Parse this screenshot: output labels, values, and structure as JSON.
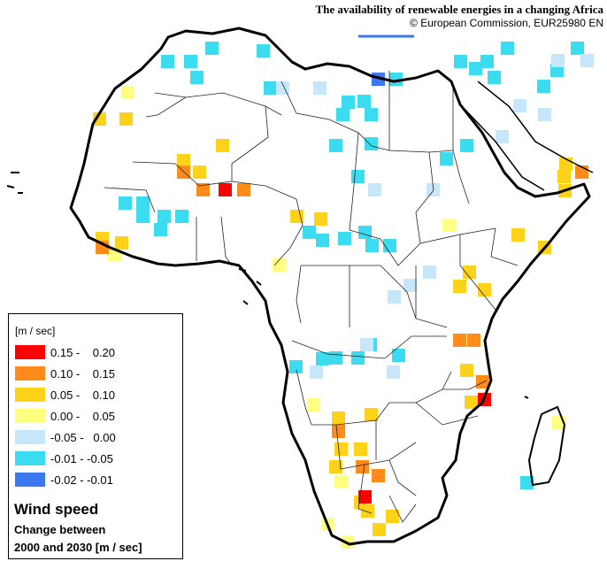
{
  "header": {
    "title": "The availability of renewable energies in a changing Africa",
    "credit": "© European Commission, EUR25980 EN"
  },
  "legend": {
    "unit": "[m / sec]",
    "classes": [
      {
        "label": "0.15 -    0.20",
        "color": "#ff0000"
      },
      {
        "label": "0.10 -    0.15",
        "color": "#ff8c1a"
      },
      {
        "label": "0.05 -    0.10",
        "color": "#ffd21a"
      },
      {
        "label": "0.00 -    0.05",
        "color": "#ffff80"
      },
      {
        "label": "-0.05 -   0.00",
        "color": "#c8e6fa"
      },
      {
        "label": "-0.01 - -0.05",
        "color": "#3cdcf0"
      },
      {
        "label": "-0.02 - -0.01",
        "color": "#3c78f0"
      }
    ],
    "title": "Wind speed",
    "subtitle1": "Change between",
    "subtitle2": "2000 and 2030  [m / sec]"
  },
  "cells": {
    "c0": [
      [
        182,
        62
      ],
      [
        208,
        62
      ],
      [
        232,
        47
      ],
      [
        215,
        80
      ],
      [
        290,
        50
      ],
      [
        298,
        92
      ],
      [
        513,
        62
      ],
      [
        530,
        70
      ],
      [
        543,
        62
      ],
      [
        551,
        80
      ],
      [
        566,
        47
      ],
      [
        622,
        72
      ],
      [
        607,
        90
      ],
      [
        645,
        47
      ],
      [
        440,
        82
      ],
      [
        386,
        108
      ],
      [
        380,
        122
      ],
      [
        404,
        107
      ],
      [
        412,
        122
      ],
      [
        372,
        157
      ],
      [
        397,
        192
      ],
      [
        412,
        155
      ],
      [
        497,
        172
      ],
      [
        520,
        157
      ],
      [
        134,
        222
      ],
      [
        154,
        222
      ],
      [
        154,
        237
      ],
      [
        178,
        237
      ],
      [
        198,
        237
      ],
      [
        174,
        252
      ],
      [
        342,
        255
      ],
      [
        357,
        264
      ],
      [
        382,
        262
      ],
      [
        405,
        255
      ],
      [
        413,
        270
      ],
      [
        433,
        270
      ],
      [
        327,
        407
      ],
      [
        357,
        398
      ],
      [
        372,
        397
      ],
      [
        397,
        397
      ],
      [
        411,
        382
      ],
      [
        443,
        394
      ],
      [
        588,
        538
      ]
    ],
    "c1": [
      [
        312,
        92
      ],
      [
        354,
        92
      ],
      [
        608,
        122
      ],
      [
        560,
        147
      ],
      [
        580,
        112
      ],
      [
        623,
        61
      ],
      [
        656,
        61
      ],
      [
        416,
        207
      ],
      [
        482,
        207
      ],
      [
        438,
        328
      ],
      [
        456,
        315
      ],
      [
        478,
        300
      ],
      [
        407,
        382
      ],
      [
        437,
        413
      ],
      [
        350,
        413
      ]
    ],
    "c2": [
      [
        420,
        82
      ]
    ],
    "c3": [
      [
        137,
        97
      ],
      [
        308,
        292
      ],
      [
        500,
        247
      ],
      [
        122,
        280
      ],
      [
        624,
        470
      ],
      [
        378,
        537
      ],
      [
        363,
        585
      ],
      [
        385,
        605
      ],
      [
        347,
        450
      ]
    ],
    "c4": [
      [
        105,
        127
      ],
      [
        135,
        127
      ],
      [
        200,
        174
      ],
      [
        218,
        187
      ],
      [
        328,
        237
      ],
      [
        355,
        240
      ],
      [
        108,
        262
      ],
      [
        130,
        267
      ],
      [
        523,
        300
      ],
      [
        512,
        316
      ],
      [
        540,
        320
      ],
      [
        520,
        411
      ],
      [
        525,
        447
      ],
      [
        375,
        465
      ],
      [
        378,
        500
      ],
      [
        412,
        461
      ],
      [
        400,
        500
      ],
      [
        421,
        591
      ],
      [
        436,
        576
      ],
      [
        400,
        560
      ],
      [
        372,
        520
      ],
      [
        408,
        570
      ],
      [
        631,
        208
      ],
      [
        578,
        258
      ],
      [
        608,
        272
      ],
      [
        632,
        178
      ],
      [
        244,
        157
      ],
      [
        630,
        192
      ]
    ],
    "c5": [
      [
        200,
        187
      ],
      [
        222,
        207
      ],
      [
        268,
        207
      ],
      [
        512,
        377
      ],
      [
        528,
        377
      ],
      [
        538,
        424
      ],
      [
        375,
        480
      ],
      [
        420,
        530
      ],
      [
        402,
        520
      ],
      [
        650,
        187
      ],
      [
        108,
        272
      ]
    ],
    "c6": [
      [
        247,
        207
      ],
      [
        540,
        444
      ],
      [
        405,
        554
      ]
    ]
  }
}
